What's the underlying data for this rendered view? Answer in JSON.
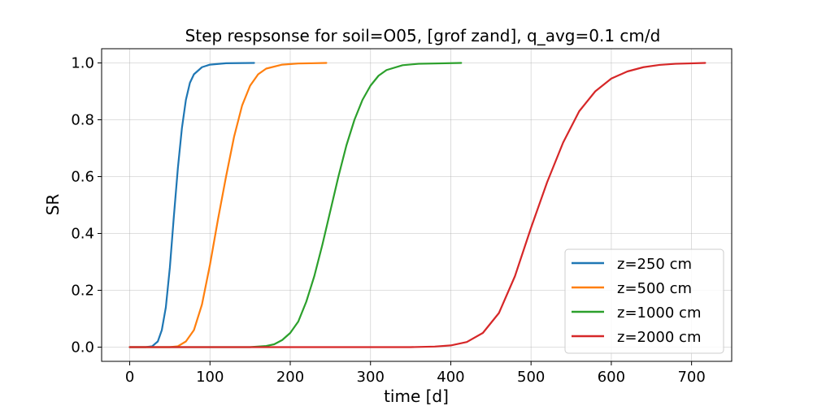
{
  "chart_data": {
    "type": "line",
    "title": "Step respsonse for soil=O05, [grof zand], q_avg=0.1 cm/d",
    "xlabel": "time [d]",
    "ylabel": "SR",
    "xlim": [
      -35,
      750
    ],
    "ylim": [
      -0.05,
      1.05
    ],
    "xticks": [
      0,
      100,
      200,
      300,
      400,
      500,
      600,
      700
    ],
    "xtick_labels": [
      "0",
      "100",
      "200",
      "300",
      "400",
      "500",
      "600",
      "700"
    ],
    "yticks": [
      0.0,
      0.2,
      0.4,
      0.6,
      0.8,
      1.0
    ],
    "ytick_labels": [
      "0.0",
      "0.2",
      "0.4",
      "0.6",
      "0.8",
      "1.0"
    ],
    "grid": true,
    "legend_position": "lower-right",
    "series": [
      {
        "name": "z=250 cm",
        "color": "#1f77b4",
        "points": [
          [
            0,
            0
          ],
          [
            20,
            0
          ],
          [
            28,
            0.003
          ],
          [
            35,
            0.02
          ],
          [
            40,
            0.06
          ],
          [
            45,
            0.14
          ],
          [
            50,
            0.28
          ],
          [
            55,
            0.46
          ],
          [
            60,
            0.63
          ],
          [
            65,
            0.77
          ],
          [
            70,
            0.87
          ],
          [
            75,
            0.93
          ],
          [
            80,
            0.96
          ],
          [
            90,
            0.985
          ],
          [
            100,
            0.994
          ],
          [
            120,
            0.999
          ],
          [
            155,
            1.0
          ]
        ]
      },
      {
        "name": "z=500 cm",
        "color": "#ff7f0e",
        "points": [
          [
            0,
            0
          ],
          [
            50,
            0
          ],
          [
            60,
            0.003
          ],
          [
            70,
            0.02
          ],
          [
            80,
            0.06
          ],
          [
            90,
            0.15
          ],
          [
            100,
            0.29
          ],
          [
            110,
            0.45
          ],
          [
            120,
            0.6
          ],
          [
            130,
            0.74
          ],
          [
            140,
            0.85
          ],
          [
            150,
            0.92
          ],
          [
            160,
            0.96
          ],
          [
            170,
            0.98
          ],
          [
            190,
            0.994
          ],
          [
            210,
            0.998
          ],
          [
            245,
            1.0
          ]
        ]
      },
      {
        "name": "z=1000 cm",
        "color": "#2ca02c",
        "points": [
          [
            0,
            0
          ],
          [
            150,
            0
          ],
          [
            170,
            0.004
          ],
          [
            180,
            0.01
          ],
          [
            190,
            0.025
          ],
          [
            200,
            0.05
          ],
          [
            210,
            0.09
          ],
          [
            220,
            0.16
          ],
          [
            230,
            0.25
          ],
          [
            240,
            0.36
          ],
          [
            250,
            0.48
          ],
          [
            260,
            0.6
          ],
          [
            270,
            0.71
          ],
          [
            280,
            0.8
          ],
          [
            290,
            0.87
          ],
          [
            300,
            0.92
          ],
          [
            310,
            0.955
          ],
          [
            320,
            0.975
          ],
          [
            340,
            0.992
          ],
          [
            360,
            0.997
          ],
          [
            413,
            1.0
          ]
        ]
      },
      {
        "name": "z=2000 cm",
        "color": "#d62728",
        "points": [
          [
            0,
            0
          ],
          [
            350,
            0
          ],
          [
            380,
            0.002
          ],
          [
            400,
            0.006
          ],
          [
            420,
            0.018
          ],
          [
            440,
            0.05
          ],
          [
            460,
            0.12
          ],
          [
            480,
            0.25
          ],
          [
            500,
            0.42
          ],
          [
            520,
            0.58
          ],
          [
            540,
            0.72
          ],
          [
            560,
            0.83
          ],
          [
            580,
            0.9
          ],
          [
            600,
            0.945
          ],
          [
            620,
            0.97
          ],
          [
            640,
            0.985
          ],
          [
            660,
            0.993
          ],
          [
            680,
            0.997
          ],
          [
            717,
            1.0
          ]
        ]
      }
    ]
  }
}
